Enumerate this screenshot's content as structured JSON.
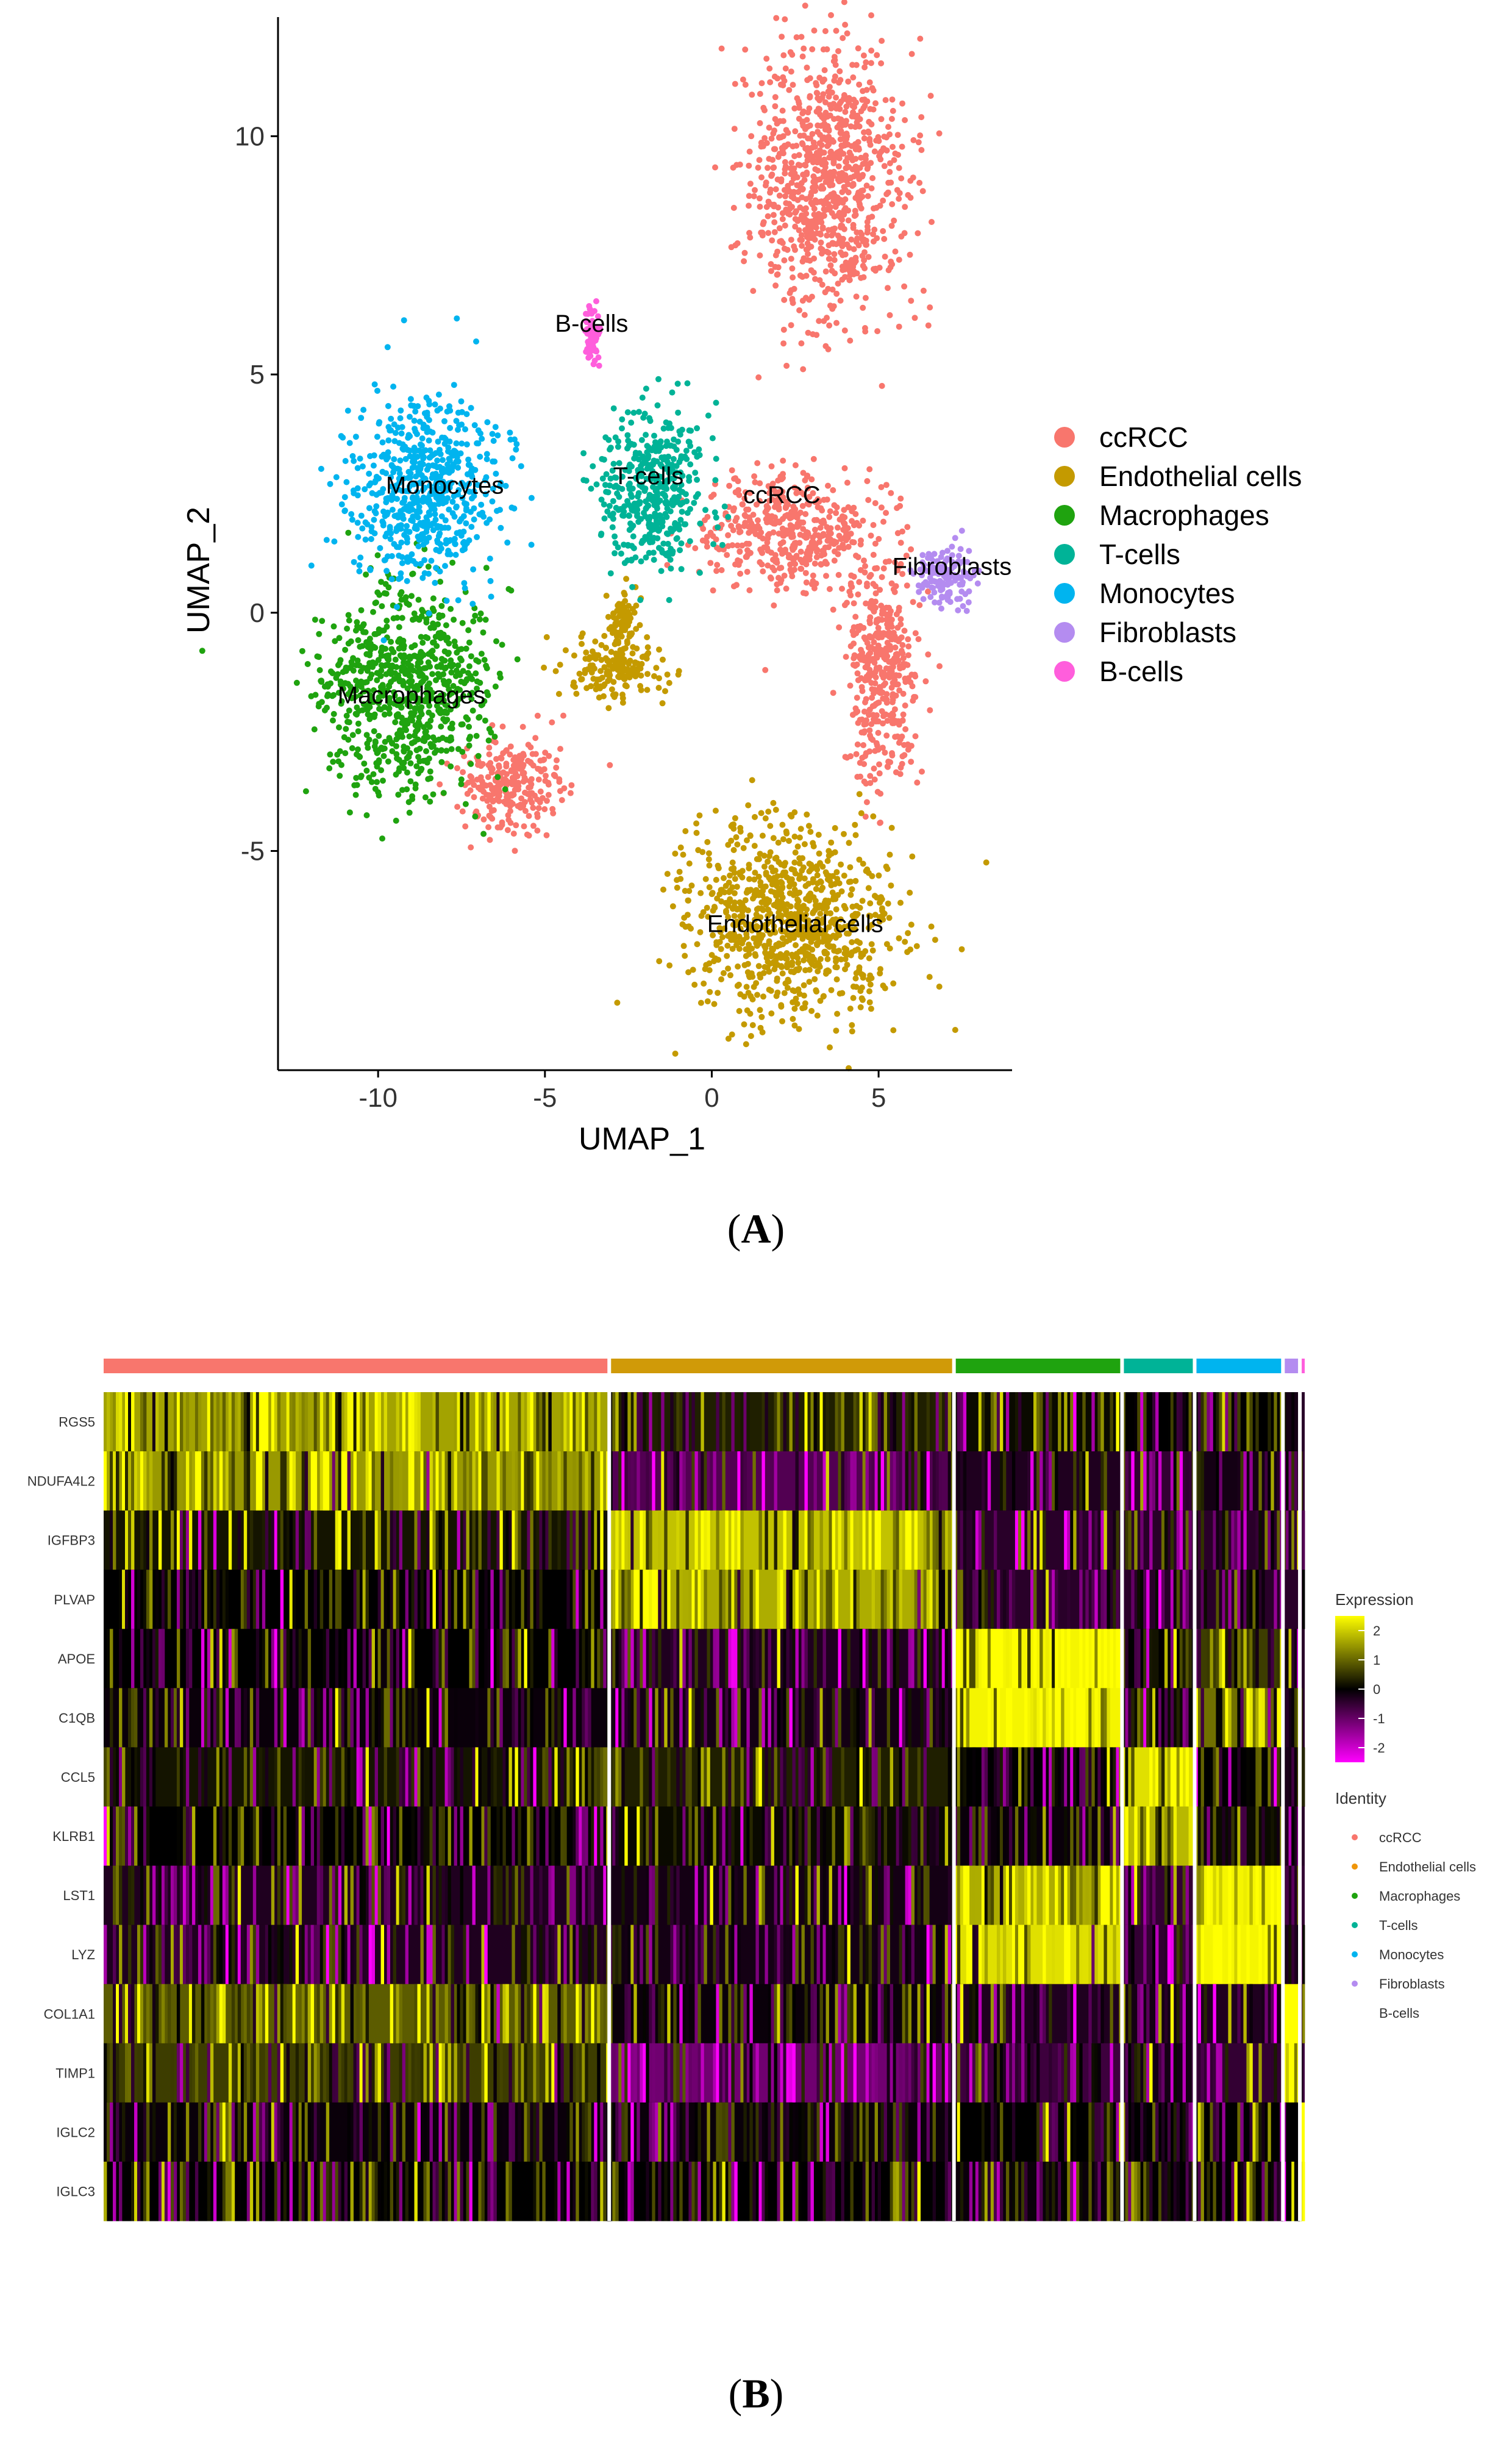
{
  "panel_a": {
    "label": "A",
    "xlabel": "UMAP_1",
    "ylabel": "UMAP_2",
    "legend": [
      {
        "name": "ccRCC",
        "color": "#F8766D"
      },
      {
        "name": "Endothelial cells",
        "color": "#C49A00"
      },
      {
        "name": "Macrophages",
        "color": "#1FA30F"
      },
      {
        "name": "T-cells",
        "color": "#00B397"
      },
      {
        "name": "Monocytes",
        "color": "#00B4EF"
      },
      {
        "name": "Fibroblasts",
        "color": "#B48CF0"
      },
      {
        "name": "B-cells",
        "color": "#FF5EDC"
      }
    ]
  },
  "panel_b": {
    "label": "B",
    "legend_expression_title": "Expression",
    "legend_identity_title": "Identity",
    "expression_colors": [
      "#FF00FF",
      "#000000",
      "#FFFF00"
    ],
    "identity_legend": [
      {
        "name": "ccRCC",
        "color": "#F8766D"
      },
      {
        "name": "Endothelial cells",
        "color": "#F0960A"
      },
      {
        "name": "Macrophages",
        "color": "#1FA30F"
      },
      {
        "name": "T-cells",
        "color": "#00B397"
      },
      {
        "name": "Monocytes",
        "color": "#00B4EF"
      },
      {
        "name": "Fibroblasts",
        "color": "#B48CF0"
      },
      {
        "name": "B-cells",
        "color": "#FFFFFF"
      }
    ]
  },
  "chart_data": [
    {
      "type": "scatter",
      "title": "",
      "xlabel": "UMAP_1",
      "ylabel": "UMAP_2",
      "xlim": [
        -13,
        9
      ],
      "ylim": [
        -9.6,
        12.5
      ],
      "x_ticks": [
        -10,
        -5,
        0,
        5
      ],
      "y_ticks": [
        -5,
        0,
        5,
        10
      ],
      "grid": false,
      "legend_position": "right",
      "clusters": [
        {
          "name": "ccRCC",
          "color": "#F8766D",
          "label_at": [
            2.1,
            2.3
          ],
          "blobs": [
            [
              3.5,
              9.0,
              2.0,
              2.6
            ],
            [
              2.3,
              1.7,
              2.2,
              1.1
            ],
            [
              5.1,
              -1.2,
              1.0,
              2.2
            ],
            [
              -6.0,
              -3.6,
              1.4,
              0.9
            ]
          ]
        },
        {
          "name": "Endothelial cells",
          "color": "#C49A00",
          "label_at": [
            2.5,
            -6.7
          ],
          "blobs": [
            [
              2.4,
              -6.5,
              2.8,
              1.8
            ],
            [
              -3.0,
              -1.2,
              1.3,
              0.5
            ],
            [
              -2.7,
              -0.2,
              0.4,
              0.6
            ]
          ]
        },
        {
          "name": "Macrophages",
          "color": "#1FA30F",
          "label_at": [
            -9.0,
            -1.9
          ],
          "blobs": [
            [
              -9.2,
              -1.6,
              2.3,
              1.9
            ]
          ]
        },
        {
          "name": "T-cells",
          "color": "#00B397",
          "label_at": [
            -1.9,
            2.7
          ],
          "blobs": [
            [
              -1.8,
              2.6,
              1.4,
              1.6
            ]
          ]
        },
        {
          "name": "Monocytes",
          "color": "#00B4EF",
          "label_at": [
            -8.0,
            2.5
          ],
          "blobs": [
            [
              -8.6,
              2.6,
              2.0,
              1.7
            ]
          ]
        },
        {
          "name": "Fibroblasts",
          "color": "#B48CF0",
          "label_at": [
            7.2,
            0.8
          ],
          "blobs": [
            [
              7.0,
              0.8,
              0.8,
              0.6
            ]
          ]
        },
        {
          "name": "B-cells",
          "color": "#FF5EDC",
          "label_at": [
            -3.6,
            5.9
          ],
          "blobs": [
            [
              -3.6,
              5.8,
              0.2,
              0.5
            ]
          ]
        }
      ]
    },
    {
      "type": "heatmap",
      "title": "",
      "genes": [
        "RGS5",
        "NDUFA4L2",
        "IGFBP3",
        "PLVAP",
        "APOE",
        "C1QB",
        "CCL5",
        "KLRB1",
        "LST1",
        "LYZ",
        "COL1A1",
        "TIMP1",
        "IGLC2",
        "IGLC3"
      ],
      "groups": [
        {
          "name": "ccRCC",
          "color": "#F8766D",
          "weight": 41.8
        },
        {
          "name": "Endothelial cells",
          "color": "#D09A08",
          "weight": 28.5
        },
        {
          "name": "Macrophages",
          "color": "#1FA30F",
          "weight": 13.9
        },
        {
          "name": "T-cells",
          "color": "#00B397",
          "weight": 6.0
        },
        {
          "name": "Monocytes",
          "color": "#00B4EF",
          "weight": 7.3
        },
        {
          "name": "Fibroblasts",
          "color": "#B48CF0",
          "weight": 1.4
        },
        {
          "name": "B-cells",
          "color": "#FF5EDC",
          "weight": 0.4
        }
      ],
      "expression_scale": {
        "min": -2.5,
        "max": 2.5,
        "ticks": [
          2,
          1,
          0,
          -1,
          -2
        ],
        "colors": [
          "#FF00FF",
          "#000000",
          "#FFFF00"
        ]
      },
      "mean_expression": [
        [
          1.6,
          0.3,
          0.1,
          0.0,
          0.0,
          -0.2,
          -0.4
        ],
        [
          1.5,
          -0.8,
          -0.3,
          -0.5,
          -0.2,
          -0.3,
          -0.5
        ],
        [
          0.2,
          1.9,
          -0.4,
          -0.4,
          -0.4,
          -0.2,
          -0.5
        ],
        [
          0.0,
          1.7,
          -0.4,
          -0.4,
          -0.4,
          -0.4,
          -0.5
        ],
        [
          0.0,
          -0.3,
          2.4,
          0.0,
          0.6,
          -0.2,
          -0.4
        ],
        [
          -0.1,
          -0.2,
          2.4,
          0.1,
          1.1,
          -0.2,
          -0.4
        ],
        [
          0.2,
          0.3,
          0.0,
          2.2,
          0.0,
          -0.2,
          -0.4
        ],
        [
          0.0,
          0.1,
          -0.1,
          1.8,
          0.1,
          -0.3,
          -0.4
        ],
        [
          -0.3,
          -0.2,
          1.7,
          -0.5,
          2.4,
          -0.3,
          -0.5
        ],
        [
          -0.3,
          -0.2,
          2.2,
          -0.5,
          2.4,
          -0.3,
          -0.5
        ],
        [
          0.9,
          -0.1,
          -0.3,
          -0.2,
          -0.3,
          2.5,
          -0.4
        ],
        [
          0.6,
          -1.1,
          -0.6,
          -0.2,
          -0.5,
          2.5,
          -0.6
        ],
        [
          -0.1,
          -0.1,
          0.0,
          0.0,
          0.0,
          0.0,
          2.5
        ],
        [
          0.0,
          0.0,
          -0.1,
          0.0,
          0.0,
          0.0,
          2.5
        ]
      ]
    }
  ]
}
